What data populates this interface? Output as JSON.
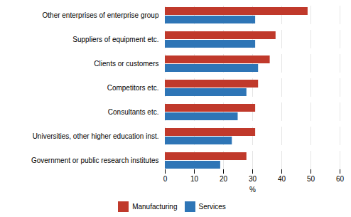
{
  "chart_data": {
    "type": "bar",
    "orientation": "horizontal",
    "categories": [
      "Other enterprises of enterprise group",
      "Suppliers of equipment etc.",
      "Clients or customers",
      "Competitors etc.",
      "Consultants etc.",
      "Universities, other higher education inst.",
      "Government or public research institutes"
    ],
    "series": [
      {
        "name": "Manufacturing",
        "color": "#C0392B",
        "values": [
          49,
          38,
          36,
          32,
          31,
          31,
          28
        ]
      },
      {
        "name": "Services",
        "color": "#2E75B6",
        "values": [
          31,
          31,
          32,
          28,
          25,
          23,
          19
        ]
      }
    ],
    "xlabel": "%",
    "xlim": [
      0,
      60
    ],
    "xticks": [
      0,
      10,
      20,
      30,
      40,
      50,
      60
    ],
    "grid": true,
    "legend": "bottom"
  }
}
